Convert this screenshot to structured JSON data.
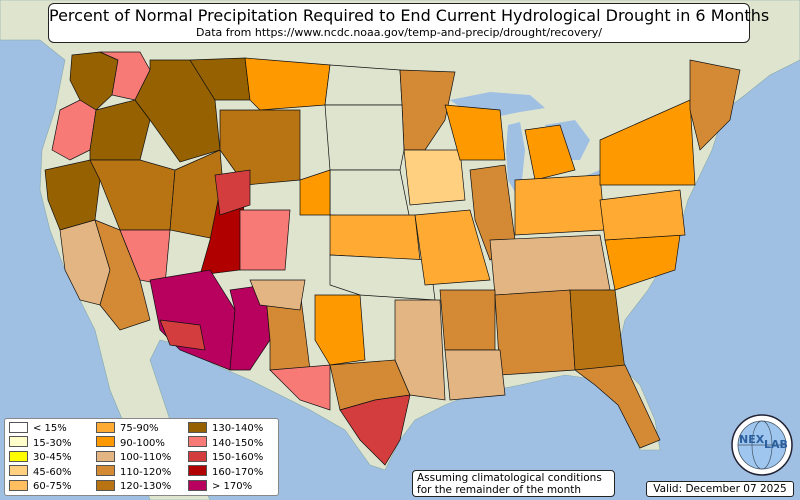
{
  "title": "Percent of Normal Precipitation Required to End Current Hydrological Drought in 6 Months",
  "subtitle": "Data from https://www.ncdc.noaa.gov/temp-and-precip/drought/recovery/",
  "note_line1": "Assuming climatological conditions",
  "note_line2": "for the remainder of the month",
  "valid": "Valid: December 07 2025",
  "logo": {
    "icon": "nexlab-globe-logo",
    "text_left": "NEX",
    "text_right": "LAB"
  },
  "colors": {
    "ocean": "#9fbfe3",
    "land": "#dfe4cf",
    "state_border": "#000000"
  },
  "legend": [
    {
      "label": "< 15%",
      "color": "#ffffff"
    },
    {
      "label": "15-30%",
      "color": "#ffffcc"
    },
    {
      "label": "30-45%",
      "color": "#ffff00"
    },
    {
      "label": "45-60%",
      "color": "#ffd080"
    },
    {
      "label": "60-75%",
      "color": "#ffbf60"
    },
    {
      "label": "75-90%",
      "color": "#ffaa33"
    },
    {
      "label": "90-100%",
      "color": "#ff9900"
    },
    {
      "label": "100-110%",
      "color": "#e2b583"
    },
    {
      "label": "110-120%",
      "color": "#d48a35"
    },
    {
      "label": "120-130%",
      "color": "#b87412"
    },
    {
      "label": "130-140%",
      "color": "#966100"
    },
    {
      "label": "140-150%",
      "color": "#f77a76"
    },
    {
      "label": "150-160%",
      "color": "#d43d3d"
    },
    {
      "label": "160-170%",
      "color": "#b00000"
    },
    {
      "label": "> 170%",
      "color": "#b8005e"
    }
  ]
}
